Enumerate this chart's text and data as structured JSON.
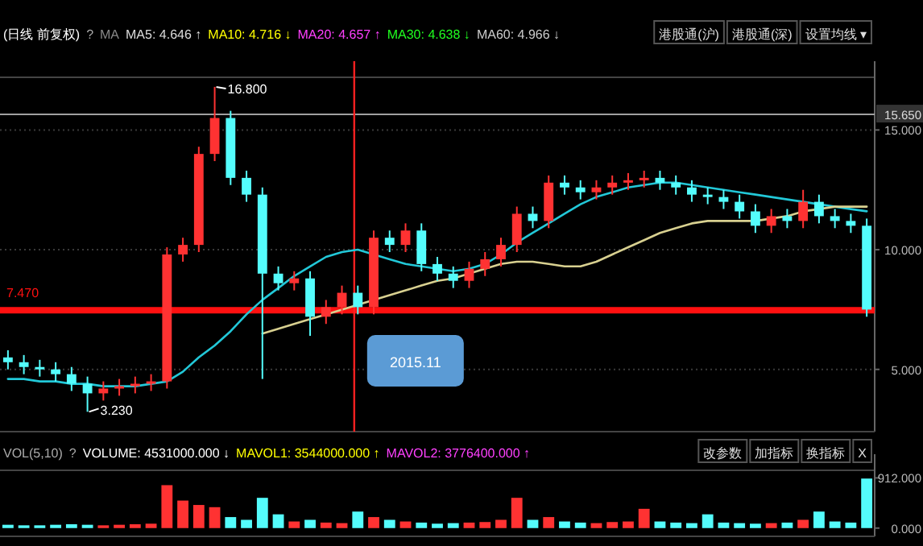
{
  "chart_data": [
    {
      "type": "candlestick",
      "title": "(日线 前复权)",
      "categories": [
        null,
        null,
        null,
        null,
        null,
        null,
        null,
        null,
        null,
        null,
        null,
        null,
        null,
        null,
        null,
        null,
        null,
        null,
        null,
        null,
        null,
        null,
        null,
        null,
        null,
        null,
        null,
        null,
        null,
        null,
        null,
        null,
        null,
        null,
        null,
        null,
        null,
        null,
        null,
        null,
        null,
        null,
        null,
        null,
        null,
        null,
        null,
        null,
        null,
        null,
        null,
        null,
        null,
        null,
        null
      ],
      "ohlc": [
        [
          5.5,
          5.8,
          5.0,
          5.3
        ],
        [
          5.3,
          5.6,
          4.8,
          5.1
        ],
        [
          5.1,
          5.4,
          4.7,
          5.0
        ],
        [
          5.0,
          5.3,
          4.5,
          4.8
        ],
        [
          4.8,
          5.1,
          4.1,
          4.4
        ],
        [
          4.4,
          4.7,
          3.23,
          4.0
        ],
        [
          4.0,
          4.5,
          3.7,
          4.2
        ],
        [
          4.2,
          4.6,
          3.9,
          4.3
        ],
        [
          4.3,
          4.7,
          4.0,
          4.4
        ],
        [
          4.4,
          4.8,
          4.1,
          4.5
        ],
        [
          4.5,
          10.1,
          4.2,
          9.8
        ],
        [
          9.8,
          10.5,
          9.5,
          10.2
        ],
        [
          10.2,
          14.3,
          9.9,
          14.0
        ],
        [
          14.0,
          16.8,
          13.7,
          15.5
        ],
        [
          15.5,
          15.8,
          12.7,
          13.0
        ],
        [
          13.0,
          13.3,
          12.0,
          12.3
        ],
        [
          12.3,
          12.6,
          4.6,
          9.0
        ],
        [
          9.0,
          9.3,
          8.3,
          8.6
        ],
        [
          8.6,
          9.1,
          8.3,
          8.8
        ],
        [
          8.8,
          9.1,
          6.4,
          7.2
        ],
        [
          7.2,
          7.9,
          6.9,
          7.6
        ],
        [
          7.6,
          8.5,
          7.3,
          8.2
        ],
        [
          8.2,
          8.5,
          7.3,
          7.6
        ],
        [
          7.6,
          10.8,
          7.3,
          10.5
        ],
        [
          10.5,
          10.8,
          9.9,
          10.2
        ],
        [
          10.2,
          11.1,
          9.9,
          10.8
        ],
        [
          10.8,
          11.1,
          9.1,
          9.4
        ],
        [
          9.4,
          9.7,
          8.7,
          9.0
        ],
        [
          9.0,
          9.3,
          8.4,
          8.7
        ],
        [
          8.7,
          9.5,
          8.4,
          9.2
        ],
        [
          9.2,
          9.9,
          8.9,
          9.6
        ],
        [
          9.6,
          10.5,
          9.3,
          10.2
        ],
        [
          10.2,
          11.8,
          9.9,
          11.5
        ],
        [
          11.5,
          11.8,
          10.9,
          11.2
        ],
        [
          11.2,
          13.1,
          10.9,
          12.8
        ],
        [
          12.8,
          13.1,
          12.3,
          12.6
        ],
        [
          12.6,
          12.9,
          12.1,
          12.4
        ],
        [
          12.4,
          12.9,
          12.1,
          12.6
        ],
        [
          12.6,
          13.1,
          12.3,
          12.8
        ],
        [
          12.8,
          13.2,
          12.5,
          12.9
        ],
        [
          12.9,
          13.3,
          12.6,
          13.0
        ],
        [
          13.0,
          13.3,
          12.5,
          12.8
        ],
        [
          12.8,
          13.1,
          12.3,
          12.6
        ],
        [
          12.6,
          12.9,
          12.0,
          12.3
        ],
        [
          12.3,
          12.6,
          11.9,
          12.2
        ],
        [
          12.2,
          12.5,
          11.7,
          12.0
        ],
        [
          12.0,
          12.3,
          11.3,
          11.6
        ],
        [
          11.6,
          11.9,
          10.7,
          11.0
        ],
        [
          11.0,
          11.7,
          10.7,
          11.4
        ],
        [
          11.4,
          11.7,
          10.9,
          11.2
        ],
        [
          11.2,
          12.5,
          10.9,
          12.0
        ],
        [
          12.0,
          12.3,
          11.1,
          11.4
        ],
        [
          11.4,
          11.7,
          10.9,
          11.2
        ],
        [
          11.2,
          11.5,
          10.7,
          11.0
        ],
        [
          11.0,
          11.3,
          7.2,
          7.5
        ]
      ],
      "series": [
        {
          "type": "line",
          "color": "#22c8d8",
          "values": [
            4.6,
            4.6,
            4.5,
            4.5,
            4.4,
            4.4,
            4.3,
            4.3,
            4.3,
            4.4,
            4.5,
            4.9,
            5.5,
            6.0,
            6.6,
            7.3,
            7.9,
            8.4,
            8.9,
            9.3,
            9.7,
            9.9,
            10.0,
            9.8,
            9.6,
            9.4,
            9.3,
            9.2,
            9.1,
            9.2,
            9.4,
            9.8,
            10.3,
            10.7,
            11.1,
            11.5,
            11.9,
            12.2,
            12.4,
            12.6,
            12.7,
            12.8,
            12.8,
            12.7,
            12.6,
            12.5,
            12.4,
            12.3,
            12.2,
            12.1,
            12.0,
            11.9,
            11.8,
            11.7,
            11.6
          ]
        },
        {
          "type": "line",
          "color": "#d8d090",
          "values": [
            null,
            null,
            null,
            null,
            null,
            null,
            null,
            null,
            null,
            null,
            null,
            null,
            null,
            null,
            null,
            null,
            6.5,
            6.7,
            6.9,
            7.1,
            7.3,
            7.5,
            7.7,
            7.9,
            8.1,
            8.3,
            8.5,
            8.7,
            8.8,
            9.0,
            9.2,
            9.4,
            9.5,
            9.5,
            9.4,
            9.3,
            9.3,
            9.5,
            9.8,
            10.1,
            10.4,
            10.7,
            10.9,
            11.1,
            11.2,
            11.2,
            11.2,
            11.2,
            11.3,
            11.4,
            11.6,
            11.7,
            11.8,
            11.8,
            11.8
          ]
        }
      ],
      "ylim": [
        2.4,
        17.2
      ],
      "yticks": [
        {
          "value": 5,
          "label": "5.000"
        },
        {
          "value": 10,
          "label": "10.000"
        },
        {
          "value": 15,
          "label": "15.000"
        }
      ],
      "grid": "y",
      "tick_labels": "y",
      "ref_lines": [
        {
          "axis": "y",
          "value": 7.47,
          "label": "7.470",
          "color": "#ff1010"
        },
        {
          "axis": "y",
          "value": 15.65,
          "label": "15.650",
          "color": "#a0a0a0"
        }
      ],
      "annotations": [
        "?",
        "MA",
        "MA5: 4.646 ↑",
        "MA10: 4.716 ↓",
        "MA20: 4.657 ↑",
        "MA30: 4.638 ↓",
        "MA60: 4.966 ↓",
        "港股通(沪)",
        "港股通(深)",
        "设置均线 ▾",
        "16.800",
        "3.230",
        "2015.11"
      ]
    },
    {
      "type": "bar",
      "title": "VOL(5,10)",
      "categories": [
        null,
        null,
        null,
        null,
        null,
        null,
        null,
        null,
        null,
        null,
        null,
        null,
        null,
        null,
        null,
        null,
        null,
        null,
        null,
        null,
        null,
        null,
        null,
        null,
        null,
        null,
        null,
        null,
        null,
        null,
        null,
        null,
        null,
        null,
        null,
        null,
        null,
        null,
        null,
        null,
        null,
        null,
        null,
        null,
        null,
        null,
        null,
        null,
        null,
        null,
        null,
        null,
        null,
        null,
        null
      ],
      "values": [
        60,
        50,
        50,
        60,
        70,
        60,
        50,
        60,
        70,
        80,
        780,
        500,
        420,
        380,
        200,
        150,
        550,
        250,
        120,
        150,
        100,
        90,
        300,
        200,
        150,
        120,
        100,
        80,
        90,
        100,
        110,
        150,
        550,
        150,
        200,
        120,
        100,
        90,
        110,
        120,
        350,
        120,
        100,
        90,
        250,
        100,
        90,
        80,
        90,
        100,
        150,
        300,
        120,
        100,
        900
      ],
      "colors": [
        "#54fcfc",
        "#54fcfc",
        "#54fcfc",
        "#54fcfc",
        "#54fcfc",
        "#54fcfc",
        "#ff3232",
        "#ff3232",
        "#ff3232",
        "#ff3232",
        "#ff3232",
        "#ff3232",
        "#ff3232",
        "#ff3232",
        "#54fcfc",
        "#54fcfc",
        "#54fcfc",
        "#54fcfc",
        "#ff3232",
        "#54fcfc",
        "#ff3232",
        "#ff3232",
        "#54fcfc",
        "#ff3232",
        "#54fcfc",
        "#ff3232",
        "#54fcfc",
        "#54fcfc",
        "#54fcfc",
        "#ff3232",
        "#ff3232",
        "#ff3232",
        "#ff3232",
        "#54fcfc",
        "#ff3232",
        "#54fcfc",
        "#54fcfc",
        "#ff3232",
        "#ff3232",
        "#ff3232",
        "#ff3232",
        "#54fcfc",
        "#54fcfc",
        "#54fcfc",
        "#54fcfc",
        "#54fcfc",
        "#54fcfc",
        "#54fcfc",
        "#ff3232",
        "#54fcfc",
        "#ff3232",
        "#54fcfc",
        "#54fcfc",
        "#54fcfc",
        "#54fcfc"
      ],
      "ylim": [
        -150,
        1050
      ],
      "yticks": [
        {
          "value": 0,
          "label": "0.000"
        },
        {
          "value": 912,
          "label": "912.000"
        }
      ],
      "tick_labels": "y",
      "annotations": [
        "?",
        "VOLUME: 4531000.000 ↓",
        "MAVOL1: 3544000.000 ↑",
        "MAVOL2: 3776400.000 ↑",
        "改参数",
        "加指标",
        "换指标",
        "X"
      ]
    }
  ]
}
